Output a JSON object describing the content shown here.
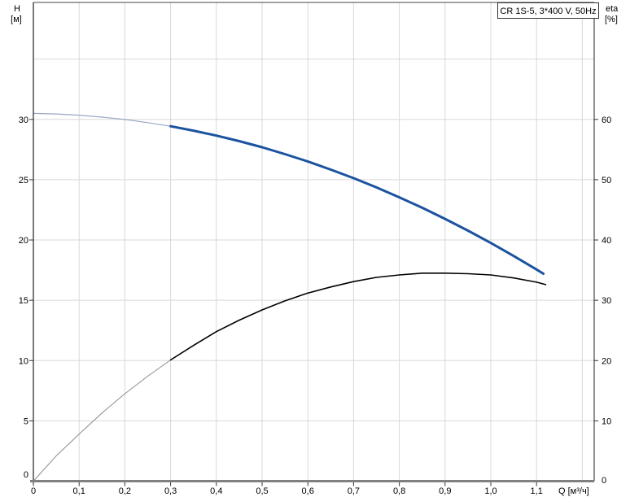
{
  "labels": {
    "title_box": "CR 1S-5, 3*400 V, 50Hz",
    "left_axis_name": "H",
    "left_axis_unit": "[м]",
    "right_axis_name": "eta",
    "right_axis_unit": "[%]",
    "bottom_axis_label": "Q [м³/ч]"
  },
  "chart_data": {
    "type": "line",
    "title": "CR 1S-5, 3*400 V, 50Hz",
    "grid": true,
    "legend": "none",
    "grid_color": "#d8d8d8",
    "frame_color": "#444444",
    "baseline_color": "#808080",
    "x_axis": {
      "label": "Q [м³/ч]",
      "range": [
        0,
        1.226
      ],
      "gridline_step": 0.1,
      "decimal_separator": "comma",
      "tick_values": [
        0,
        0.1,
        0.2,
        0.3,
        0.4,
        0.5,
        0.6,
        0.7,
        0.8,
        0.9,
        1.0,
        1.1
      ],
      "tick_labels": [
        "0",
        "0,1",
        "0,2",
        "0,3",
        "0,4",
        "0,5",
        "0,6",
        "0,7",
        "0,8",
        "0,9",
        "1,0",
        "1,1"
      ]
    },
    "y_axis_left": {
      "label": "H [м]",
      "range": [
        0,
        39.7
      ],
      "gridline_step": 5,
      "tick_values": [
        5,
        10,
        15,
        20,
        25,
        30
      ],
      "zero_label": "0"
    },
    "y_axis_right": {
      "label": "eta [%]",
      "range": [
        0,
        79.4
      ],
      "gridline_step": 10,
      "tick_values": [
        10,
        20,
        30,
        40,
        50,
        60
      ],
      "zero_label": "0"
    },
    "series": [
      {
        "name": "head-curve",
        "description": "Pump head H vs flow Q",
        "axis": "left",
        "color": "#1b53a0",
        "thin_color": "#97a8c6",
        "thin_until_x": 0.3,
        "thick_width": 3,
        "thin_width": 1.2,
        "points": [
          [
            0,
            30.5
          ],
          [
            0.05,
            30.45
          ],
          [
            0.1,
            30.35
          ],
          [
            0.15,
            30.19
          ],
          [
            0.2,
            29.99
          ],
          [
            0.25,
            29.73
          ],
          [
            0.3,
            29.43
          ],
          [
            0.35,
            29.07
          ],
          [
            0.4,
            28.66
          ],
          [
            0.45,
            28.2
          ],
          [
            0.5,
            27.69
          ],
          [
            0.55,
            27.12
          ],
          [
            0.6,
            26.51
          ],
          [
            0.65,
            25.84
          ],
          [
            0.7,
            25.13
          ],
          [
            0.75,
            24.36
          ],
          [
            0.8,
            23.54
          ],
          [
            0.85,
            22.67
          ],
          [
            0.9,
            21.75
          ],
          [
            0.95,
            20.78
          ],
          [
            1.0,
            19.75
          ],
          [
            1.05,
            18.67
          ],
          [
            1.1,
            17.55
          ],
          [
            1.115,
            17.2
          ]
        ]
      },
      {
        "name": "efficiency-curve",
        "description": "Efficiency eta vs flow Q",
        "axis": "right",
        "color": "#000000",
        "thin_color": "#8c8c8c",
        "thin_until_x": 0.3,
        "thick_width": 1.6,
        "thin_width": 1,
        "points": [
          [
            0,
            0
          ],
          [
            0.05,
            4.2
          ],
          [
            0.1,
            7.8
          ],
          [
            0.15,
            11.3
          ],
          [
            0.2,
            14.5
          ],
          [
            0.25,
            17.4
          ],
          [
            0.3,
            20.1
          ],
          [
            0.35,
            22.5
          ],
          [
            0.4,
            24.8
          ],
          [
            0.45,
            26.7
          ],
          [
            0.5,
            28.4
          ],
          [
            0.55,
            29.9
          ],
          [
            0.6,
            31.2
          ],
          [
            0.65,
            32.2
          ],
          [
            0.7,
            33.1
          ],
          [
            0.75,
            33.8
          ],
          [
            0.8,
            34.2
          ],
          [
            0.85,
            34.5
          ],
          [
            0.9,
            34.5
          ],
          [
            0.95,
            34.4
          ],
          [
            1.0,
            34.2
          ],
          [
            1.05,
            33.7
          ],
          [
            1.1,
            33.0
          ],
          [
            1.12,
            32.6
          ]
        ]
      }
    ]
  }
}
